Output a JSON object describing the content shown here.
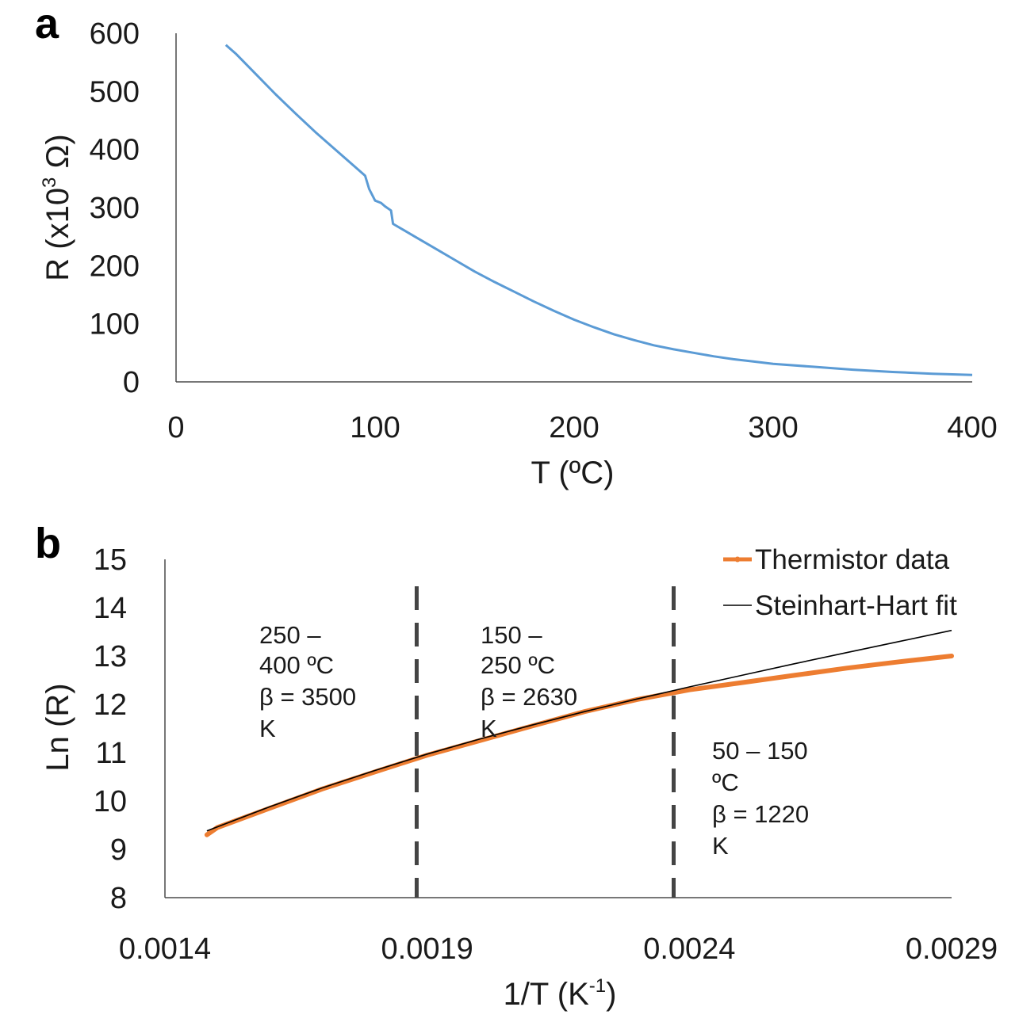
{
  "chart_data": [
    {
      "panel": "a",
      "type": "line",
      "xlabel": "T (ºC)",
      "ylabel_parts": [
        "R (x10",
        "3",
        " Ω)"
      ],
      "xlim": [
        0,
        400
      ],
      "ylim": [
        0,
        600
      ],
      "xticks": [
        "0",
        "100",
        "200",
        "300",
        "400"
      ],
      "yticks": [
        "0",
        "100",
        "200",
        "300",
        "400",
        "500",
        "600"
      ],
      "series": [
        {
          "name": "R",
          "color": "#5b9bd5",
          "x": [
            25,
            30,
            40,
            50,
            60,
            70,
            80,
            90,
            95,
            97,
            100,
            103,
            105,
            108,
            109,
            110,
            120,
            130,
            140,
            150,
            160,
            170,
            180,
            190,
            200,
            210,
            220,
            230,
            240,
            250,
            260,
            270,
            280,
            290,
            300,
            320,
            340,
            360,
            380,
            400
          ],
          "y": [
            580,
            565,
            530,
            495,
            462,
            430,
            400,
            370,
            355,
            332,
            312,
            308,
            302,
            295,
            272,
            270,
            250,
            230,
            210,
            190,
            172,
            155,
            138,
            122,
            107,
            94,
            82,
            72,
            63,
            56,
            50,
            44,
            39,
            35,
            31,
            26,
            21,
            17,
            14,
            12
          ]
        }
      ]
    },
    {
      "panel": "b",
      "type": "line",
      "xlabel_parts": [
        "1/T (K",
        "-1",
        ")"
      ],
      "ylabel": "Ln (R)",
      "xlim": [
        0.0014,
        0.0029
      ],
      "ylim": [
        8,
        15
      ],
      "xticks": [
        "0.0014",
        "0.0019",
        "0.0024",
        "0.0029"
      ],
      "yticks": [
        "8",
        "9",
        "10",
        "11",
        "12",
        "13",
        "14",
        "15"
      ],
      "vlines": [
        0.00188,
        0.00237
      ],
      "series": [
        {
          "name": "Thermistor data",
          "color": "#ed7d31",
          "x": [
            0.00148,
            0.0015,
            0.0016,
            0.0017,
            0.0018,
            0.0019,
            0.002,
            0.0021,
            0.0022,
            0.0023,
            0.0024,
            0.0025,
            0.0026,
            0.0027,
            0.0028,
            0.0029
          ],
          "y": [
            9.3,
            9.45,
            9.85,
            10.25,
            10.6,
            10.95,
            11.25,
            11.55,
            11.85,
            12.1,
            12.3,
            12.45,
            12.6,
            12.75,
            12.88,
            13.0
          ]
        },
        {
          "name": "Steinhart-Hart fit",
          "color": "#000000",
          "x": [
            0.00148,
            0.0016,
            0.0017,
            0.0018,
            0.0019,
            0.002,
            0.0021,
            0.0022,
            0.0023,
            0.0024,
            0.0025,
            0.0026,
            0.0027,
            0.0028,
            0.0029
          ],
          "y": [
            9.38,
            9.88,
            10.27,
            10.63,
            10.97,
            11.28,
            11.57,
            11.85,
            12.11,
            12.36,
            12.6,
            12.84,
            13.07,
            13.3,
            13.53
          ]
        }
      ],
      "annotations": [
        {
          "lines": [
            "250 –",
            "400 ºC",
            "β = 3500",
            "K"
          ]
        },
        {
          "lines": [
            "150 –",
            "250 ºC",
            "β = 2630",
            "K"
          ]
        },
        {
          "lines": [
            "50 – 150",
            "ºC",
            "β = 1220",
            "K"
          ]
        }
      ],
      "legend": [
        "Thermistor data",
        "Steinhart-Hart fit"
      ]
    }
  ]
}
